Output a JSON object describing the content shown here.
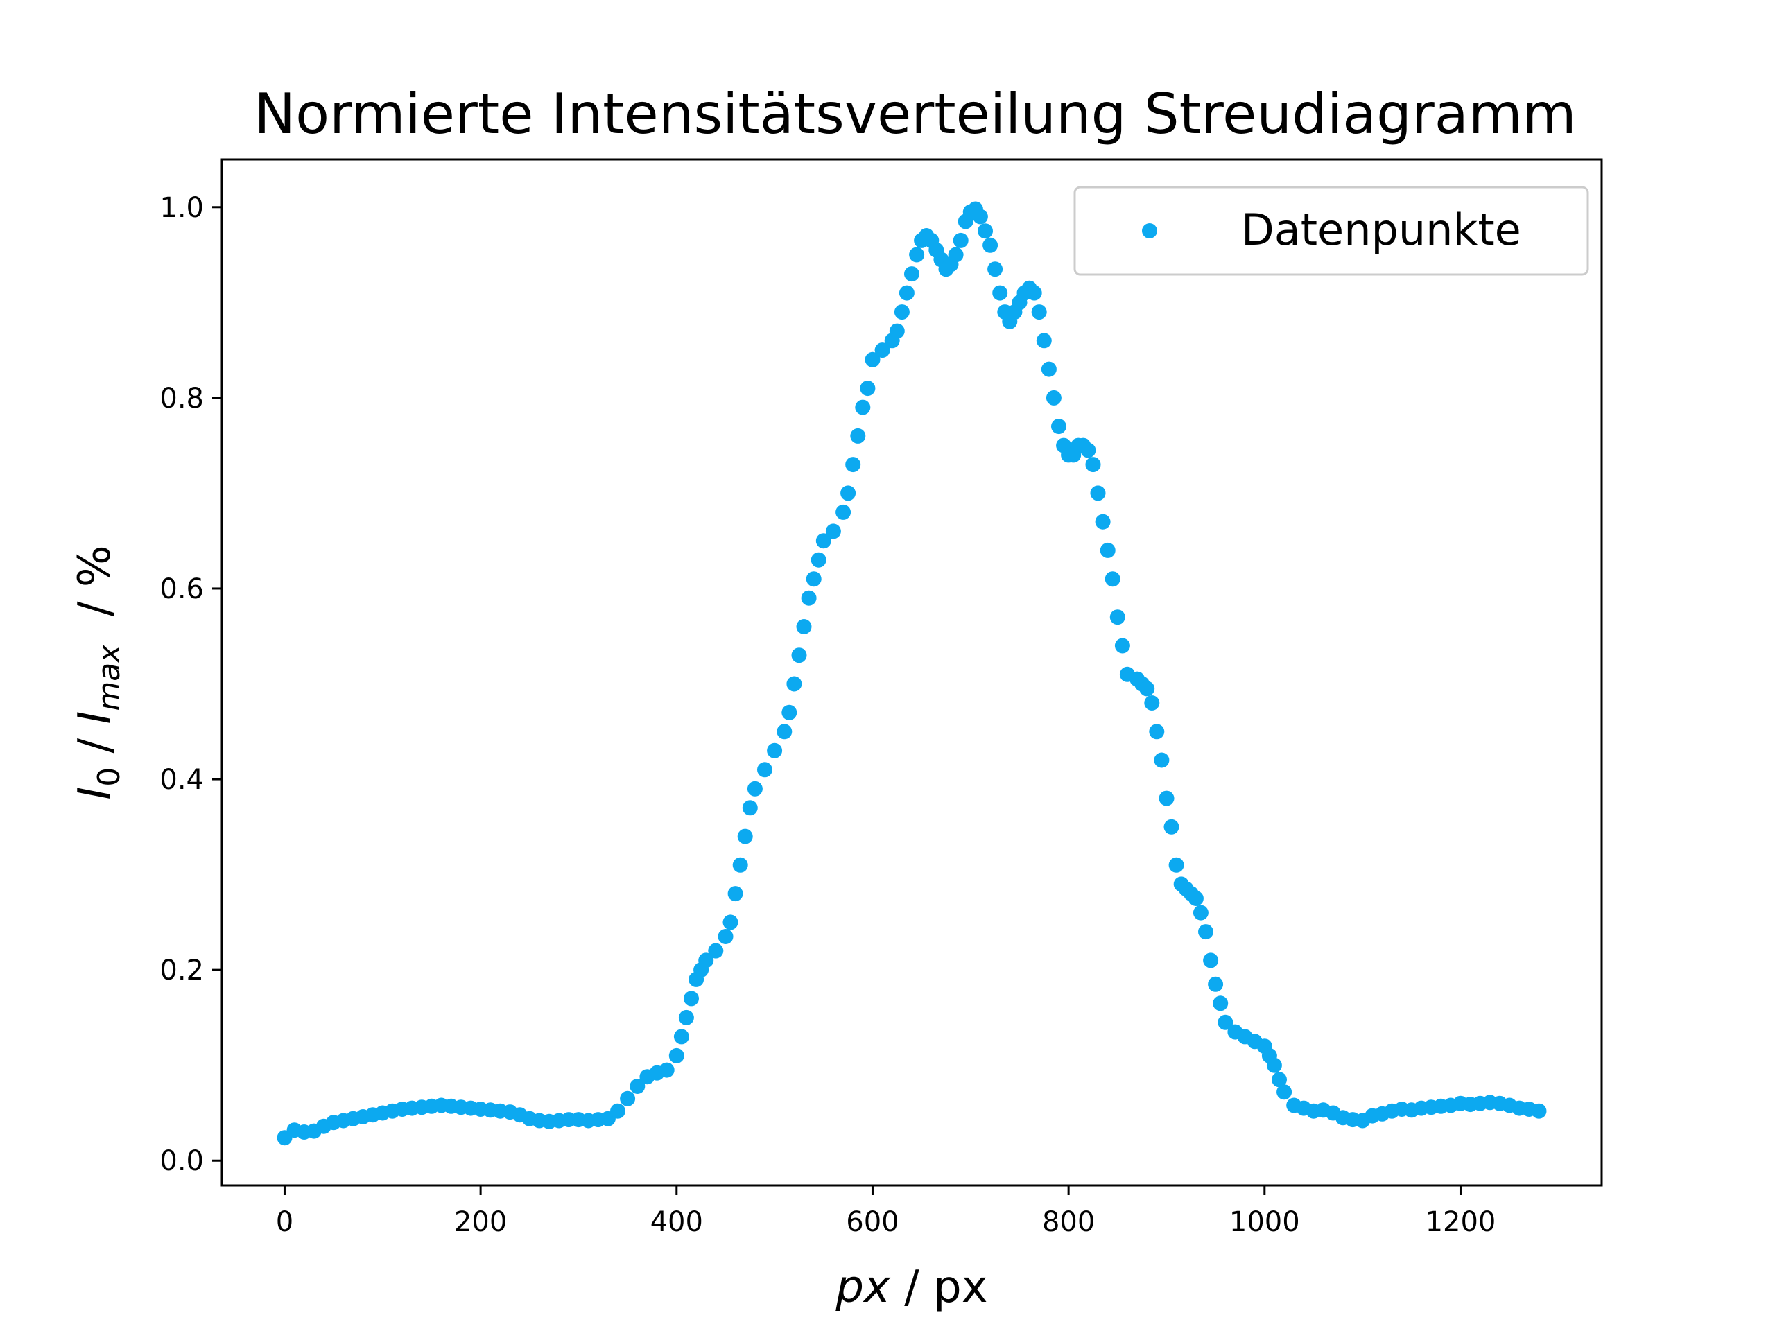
{
  "chart_data": {
    "type": "scatter",
    "title": "Normierte Intensitätsverteilung Streudiagramm",
    "xlabel": {
      "italic": "px",
      "rest": " / px"
    },
    "ylabel": {
      "I0": "I",
      "sub0": "0",
      "sep": " / ",
      "Imax": "I",
      "subMax": "max",
      "unit": "  / %"
    },
    "xlim": [
      -64,
      1344
    ],
    "ylim": [
      -0.026,
      1.05
    ],
    "xticks": [
      0,
      200,
      400,
      600,
      800,
      1000,
      1200
    ],
    "xtick_labels": [
      "0",
      "200",
      "400",
      "600",
      "800",
      "1000",
      "1200"
    ],
    "yticks": [
      0.0,
      0.2,
      0.4,
      0.6,
      0.8,
      1.0
    ],
    "ytick_labels": [
      "0.0",
      "0.2",
      "0.4",
      "0.6",
      "0.8",
      "1.0"
    ],
    "grid": false,
    "legend": {
      "position": "top-right",
      "label": "Datenpunkte"
    },
    "series": [
      {
        "name": "Datenpunkte",
        "color": "#0ca9f0",
        "points": [
          [
            0,
            0.024
          ],
          [
            10,
            0.032
          ],
          [
            20,
            0.03
          ],
          [
            30,
            0.031
          ],
          [
            40,
            0.036
          ],
          [
            50,
            0.04
          ],
          [
            60,
            0.042
          ],
          [
            70,
            0.044
          ],
          [
            80,
            0.046
          ],
          [
            90,
            0.048
          ],
          [
            100,
            0.05
          ],
          [
            110,
            0.052
          ],
          [
            120,
            0.054
          ],
          [
            130,
            0.055
          ],
          [
            140,
            0.056
          ],
          [
            150,
            0.057
          ],
          [
            160,
            0.058
          ],
          [
            170,
            0.057
          ],
          [
            180,
            0.056
          ],
          [
            190,
            0.055
          ],
          [
            200,
            0.054
          ],
          [
            210,
            0.053
          ],
          [
            220,
            0.052
          ],
          [
            230,
            0.051
          ],
          [
            240,
            0.048
          ],
          [
            250,
            0.044
          ],
          [
            260,
            0.042
          ],
          [
            270,
            0.041
          ],
          [
            280,
            0.042
          ],
          [
            290,
            0.043
          ],
          [
            300,
            0.043
          ],
          [
            310,
            0.042
          ],
          [
            320,
            0.043
          ],
          [
            330,
            0.044
          ],
          [
            340,
            0.052
          ],
          [
            350,
            0.065
          ],
          [
            360,
            0.078
          ],
          [
            370,
            0.088
          ],
          [
            380,
            0.092
          ],
          [
            390,
            0.095
          ],
          [
            400,
            0.11
          ],
          [
            405,
            0.13
          ],
          [
            410,
            0.15
          ],
          [
            415,
            0.17
          ],
          [
            420,
            0.19
          ],
          [
            425,
            0.2
          ],
          [
            430,
            0.21
          ],
          [
            440,
            0.22
          ],
          [
            450,
            0.235
          ],
          [
            455,
            0.25
          ],
          [
            460,
            0.28
          ],
          [
            465,
            0.31
          ],
          [
            470,
            0.34
          ],
          [
            475,
            0.37
          ],
          [
            480,
            0.39
          ],
          [
            490,
            0.41
          ],
          [
            500,
            0.43
          ],
          [
            510,
            0.45
          ],
          [
            515,
            0.47
          ],
          [
            520,
            0.5
          ],
          [
            525,
            0.53
          ],
          [
            530,
            0.56
          ],
          [
            535,
            0.59
          ],
          [
            540,
            0.61
          ],
          [
            545,
            0.63
          ],
          [
            550,
            0.65
          ],
          [
            560,
            0.66
          ],
          [
            570,
            0.68
          ],
          [
            575,
            0.7
          ],
          [
            580,
            0.73
          ],
          [
            585,
            0.76
          ],
          [
            590,
            0.79
          ],
          [
            595,
            0.81
          ],
          [
            600,
            0.84
          ],
          [
            610,
            0.85
          ],
          [
            620,
            0.86
          ],
          [
            625,
            0.87
          ],
          [
            630,
            0.89
          ],
          [
            635,
            0.91
          ],
          [
            640,
            0.93
          ],
          [
            645,
            0.95
          ],
          [
            650,
            0.965
          ],
          [
            655,
            0.97
          ],
          [
            660,
            0.965
          ],
          [
            665,
            0.955
          ],
          [
            670,
            0.945
          ],
          [
            675,
            0.935
          ],
          [
            680,
            0.94
          ],
          [
            685,
            0.95
          ],
          [
            690,
            0.965
          ],
          [
            695,
            0.985
          ],
          [
            700,
            0.995
          ],
          [
            705,
            0.998
          ],
          [
            710,
            0.99
          ],
          [
            715,
            0.975
          ],
          [
            720,
            0.96
          ],
          [
            725,
            0.935
          ],
          [
            730,
            0.91
          ],
          [
            735,
            0.89
          ],
          [
            740,
            0.88
          ],
          [
            745,
            0.89
          ],
          [
            750,
            0.9
          ],
          [
            755,
            0.91
          ],
          [
            760,
            0.915
          ],
          [
            765,
            0.91
          ],
          [
            770,
            0.89
          ],
          [
            775,
            0.86
          ],
          [
            780,
            0.83
          ],
          [
            785,
            0.8
          ],
          [
            790,
            0.77
          ],
          [
            795,
            0.75
          ],
          [
            800,
            0.74
          ],
          [
            805,
            0.74
          ],
          [
            810,
            0.75
          ],
          [
            815,
            0.75
          ],
          [
            820,
            0.745
          ],
          [
            825,
            0.73
          ],
          [
            830,
            0.7
          ],
          [
            835,
            0.67
          ],
          [
            840,
            0.64
          ],
          [
            845,
            0.61
          ],
          [
            850,
            0.57
          ],
          [
            855,
            0.54
          ],
          [
            860,
            0.51
          ],
          [
            870,
            0.505
          ],
          [
            875,
            0.5
          ],
          [
            880,
            0.495
          ],
          [
            885,
            0.48
          ],
          [
            890,
            0.45
          ],
          [
            895,
            0.42
          ],
          [
            900,
            0.38
          ],
          [
            905,
            0.35
          ],
          [
            910,
            0.31
          ],
          [
            915,
            0.29
          ],
          [
            920,
            0.285
          ],
          [
            925,
            0.28
          ],
          [
            930,
            0.275
          ],
          [
            935,
            0.26
          ],
          [
            940,
            0.24
          ],
          [
            945,
            0.21
          ],
          [
            950,
            0.185
          ],
          [
            955,
            0.165
          ],
          [
            960,
            0.145
          ],
          [
            970,
            0.135
          ],
          [
            980,
            0.13
          ],
          [
            990,
            0.125
          ],
          [
            1000,
            0.12
          ],
          [
            1005,
            0.11
          ],
          [
            1010,
            0.1
          ],
          [
            1015,
            0.085
          ],
          [
            1020,
            0.072
          ],
          [
            1030,
            0.058
          ],
          [
            1040,
            0.055
          ],
          [
            1050,
            0.052
          ],
          [
            1060,
            0.053
          ],
          [
            1070,
            0.05
          ],
          [
            1080,
            0.045
          ],
          [
            1090,
            0.043
          ],
          [
            1100,
            0.042
          ],
          [
            1110,
            0.047
          ],
          [
            1120,
            0.049
          ],
          [
            1130,
            0.052
          ],
          [
            1140,
            0.054
          ],
          [
            1150,
            0.053
          ],
          [
            1160,
            0.055
          ],
          [
            1170,
            0.056
          ],
          [
            1180,
            0.057
          ],
          [
            1190,
            0.058
          ],
          [
            1200,
            0.06
          ],
          [
            1210,
            0.059
          ],
          [
            1220,
            0.06
          ],
          [
            1230,
            0.061
          ],
          [
            1240,
            0.06
          ],
          [
            1250,
            0.058
          ],
          [
            1260,
            0.055
          ],
          [
            1270,
            0.054
          ],
          [
            1280,
            0.052
          ]
        ]
      }
    ]
  }
}
